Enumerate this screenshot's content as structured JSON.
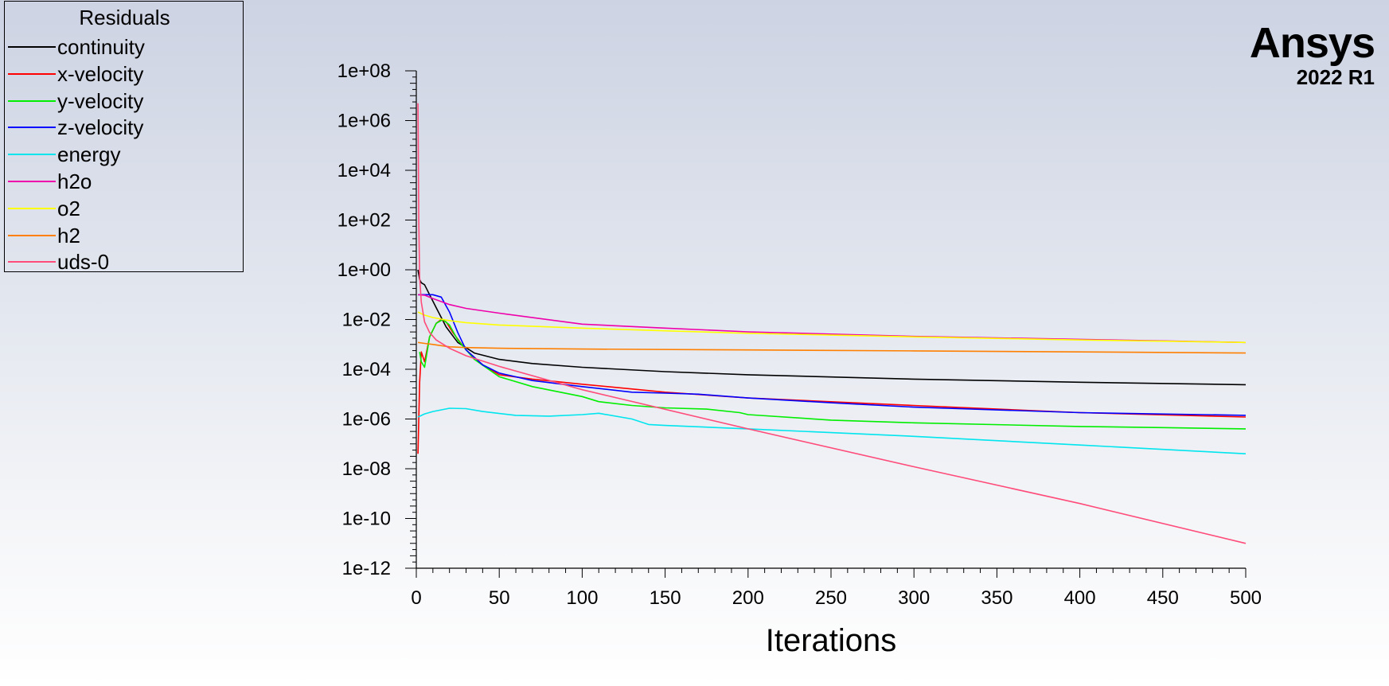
{
  "chart_data": {
    "type": "line",
    "title": "",
    "xlabel": "Iterations",
    "ylabel": "",
    "xlim": [
      0,
      500
    ],
    "ylim": [
      1e-12,
      100000000.0
    ],
    "yscale": "log",
    "grid": false,
    "legend_title": "Residuals",
    "legend_position": "top-left",
    "x_ticks": [
      0,
      50,
      100,
      150,
      200,
      250,
      300,
      350,
      400,
      450,
      500
    ],
    "x_tick_labels": [
      "0",
      "50",
      "100",
      "150",
      "200",
      "250",
      "300",
      "350",
      "400",
      "450",
      "500"
    ],
    "y_ticks": [
      100000000.0,
      1000000.0,
      10000.0,
      100.0,
      1,
      0.01,
      0.0001,
      1e-06,
      1e-08,
      1e-10,
      1e-12
    ],
    "y_tick_labels": [
      "1e+08",
      "1e+06",
      "1e+04",
      "1e+02",
      "1e+00",
      "1e-02",
      "1e-04",
      "1e-06",
      "1e-08",
      "1e-10",
      "1e-12"
    ],
    "series": [
      {
        "name": "continuity",
        "color": "#000000",
        "x": [
          1,
          2,
          3,
          5,
          8,
          12,
          18,
          25,
          35,
          50,
          70,
          100,
          150,
          200,
          300,
          400,
          500
        ],
        "y": [
          1.0,
          0.4,
          0.3,
          0.25,
          0.1,
          0.03,
          0.005,
          0.0012,
          0.00045,
          0.00025,
          0.00017,
          0.00012,
          8e-05,
          6e-05,
          4e-05,
          3e-05,
          2.4e-05
        ]
      },
      {
        "name": "x-velocity",
        "color": "#ff0000",
        "x": [
          1,
          2,
          3,
          5,
          8,
          12,
          15,
          18,
          22,
          30,
          40,
          50,
          70,
          100,
          150,
          200,
          300,
          400,
          500
        ],
        "y": [
          4e-08,
          3e-05,
          0.0005,
          0.0002,
          0.002,
          0.007,
          0.01,
          0.008,
          0.003,
          0.0006,
          0.00015,
          6e-05,
          4e-05,
          2.5e-05,
          1.2e-05,
          7e-06,
          3.5e-06,
          1.8e-06,
          1.2e-06
        ]
      },
      {
        "name": "y-velocity",
        "color": "#00ee00",
        "x": [
          2,
          3,
          5,
          8,
          12,
          16,
          20,
          25,
          35,
          50,
          70,
          100,
          110,
          130,
          150,
          175,
          195,
          200,
          250,
          300,
          400,
          450,
          500
        ],
        "y": [
          0.0005,
          0.0002,
          0.00012,
          0.002,
          0.007,
          0.01,
          0.006,
          0.0015,
          0.00025,
          5e-05,
          2e-05,
          8e-06,
          5e-06,
          3.5e-06,
          2.8e-06,
          2.5e-06,
          1.8e-06,
          1.5e-06,
          9e-07,
          7e-07,
          5e-07,
          4.5e-07,
          4e-07
        ]
      },
      {
        "name": "z-velocity",
        "color": "#0000ff",
        "x": [
          1,
          5,
          10,
          15,
          20,
          25,
          30,
          40,
          50,
          70,
          100,
          130,
          150,
          170,
          200,
          250,
          300,
          400,
          500
        ],
        "y": [
          0.1,
          0.1,
          0.1,
          0.08,
          0.02,
          0.003,
          0.0006,
          0.00015,
          7e-05,
          3.5e-05,
          2e-05,
          1.2e-05,
          1.1e-05,
          1e-05,
          7e-06,
          4.5e-06,
          3e-06,
          1.8e-06,
          1.4e-06
        ]
      },
      {
        "name": "energy",
        "color": "#00e5ee",
        "x": [
          1,
          5,
          10,
          20,
          30,
          40,
          60,
          80,
          100,
          110,
          130,
          140,
          150,
          200,
          300,
          400,
          500
        ],
        "y": [
          1.2e-06,
          1.6e-06,
          2e-06,
          2.7e-06,
          2.6e-06,
          2e-06,
          1.4e-06,
          1.3e-06,
          1.5e-06,
          1.7e-06,
          1e-06,
          6e-07,
          5.5e-07,
          4e-07,
          2e-07,
          9e-08,
          4e-08
        ]
      },
      {
        "name": "h2o",
        "color": "#ee00aa",
        "x": [
          1,
          5,
          10,
          20,
          30,
          50,
          100,
          150,
          200,
          300,
          400,
          500
        ],
        "y": [
          0.1,
          0.095,
          0.07,
          0.04,
          0.028,
          0.018,
          0.0065,
          0.0045,
          0.0032,
          0.0021,
          0.0016,
          0.0012
        ]
      },
      {
        "name": "o2",
        "color": "#ffff00",
        "x": [
          1,
          5,
          10,
          20,
          30,
          50,
          100,
          150,
          200,
          300,
          400,
          500
        ],
        "y": [
          0.02,
          0.015,
          0.012,
          0.009,
          0.0075,
          0.006,
          0.0045,
          0.0035,
          0.0028,
          0.002,
          0.0015,
          0.0012
        ]
      },
      {
        "name": "h2",
        "color": "#ff7f00",
        "x": [
          1,
          5,
          10,
          20,
          30,
          50,
          100,
          200,
          300,
          400,
          500
        ],
        "y": [
          0.0012,
          0.0011,
          0.001,
          0.0008,
          0.00075,
          0.0007,
          0.00065,
          0.0006,
          0.00055,
          0.0005,
          0.00045
        ]
      },
      {
        "name": "uds-0",
        "color": "#ff4c7a",
        "x": [
          1,
          1.5,
          2,
          3,
          5,
          8,
          12,
          20,
          30,
          50,
          100,
          200,
          300,
          400,
          500
        ],
        "y": [
          5000000.0,
          100.0,
          0.5,
          0.05,
          0.008,
          0.003,
          0.0015,
          0.0007,
          0.00035,
          0.00013,
          1.5e-05,
          4e-07,
          1.2e-08,
          4e-10,
          1e-11
        ]
      }
    ]
  },
  "brand": {
    "name": "Ansys",
    "version": "2022 R1"
  }
}
